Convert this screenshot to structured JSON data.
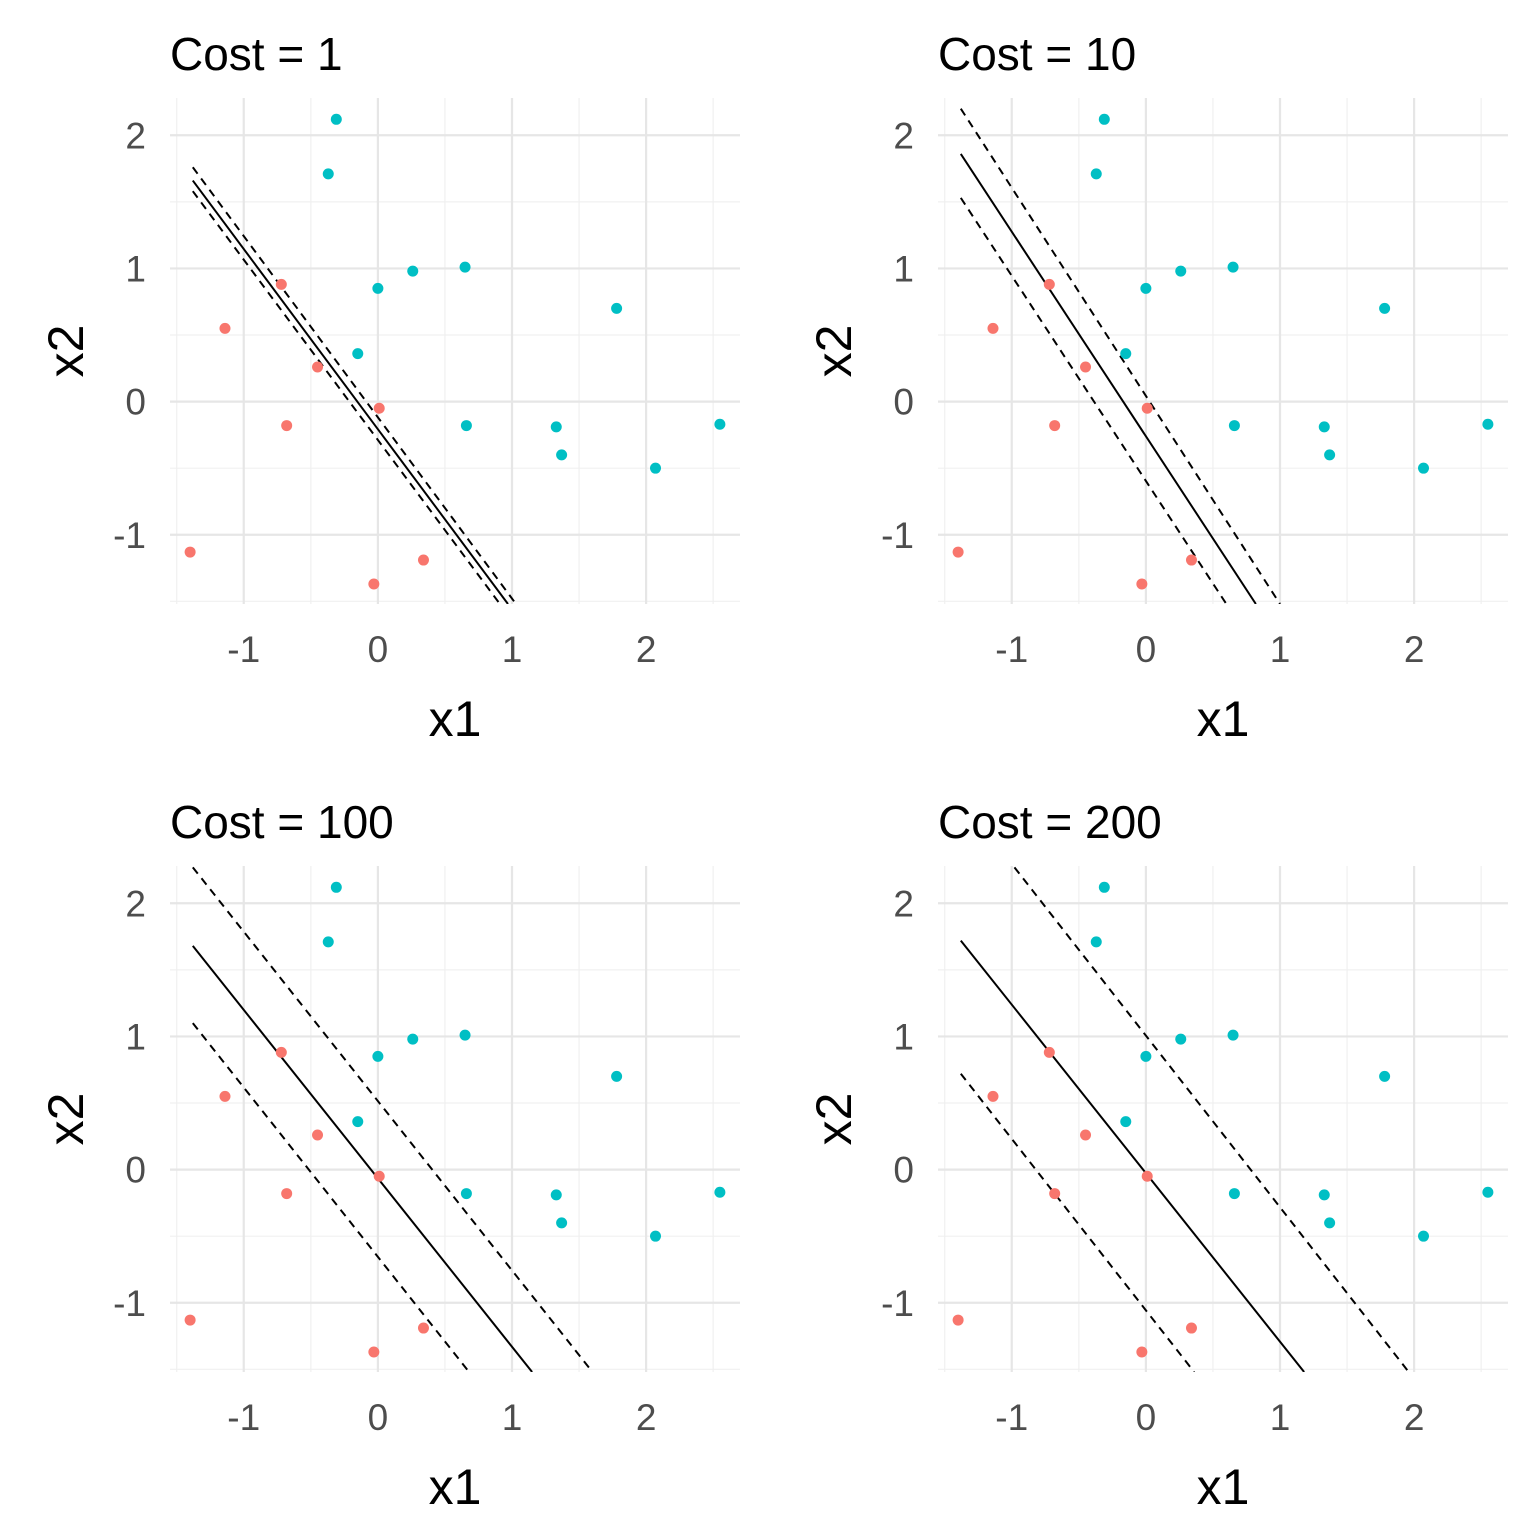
{
  "chart_data": [
    {
      "type": "scatter",
      "title": "Cost = 1",
      "xlabel": "x1",
      "ylabel": "x2",
      "xlim": [
        -1.55,
        2.7
      ],
      "ylim": [
        -1.52,
        2.28
      ],
      "xticks": [
        -1,
        0,
        1,
        2
      ],
      "yticks": [
        -1,
        0,
        1,
        2
      ],
      "grid": true,
      "series": [
        {
          "color": "#F8766D",
          "x": [
            -1.4,
            -1.14,
            -0.72,
            -0.68,
            -0.45,
            0.01,
            -0.03,
            0.34
          ],
          "y": [
            -1.13,
            0.55,
            0.88,
            -0.18,
            0.26,
            -0.05,
            -1.37,
            -1.19
          ]
        },
        {
          "color": "#00BFC4",
          "x": [
            -0.31,
            -0.37,
            0.0,
            0.26,
            0.65,
            -0.15,
            0.66,
            1.33,
            1.37,
            1.78,
            2.07,
            2.55
          ],
          "y": [
            2.12,
            1.71,
            0.85,
            0.98,
            1.01,
            0.36,
            -0.18,
            -0.19,
            -0.4,
            0.7,
            -0.5,
            -0.17
          ]
        }
      ],
      "boundary": {
        "x": [
          -1.38,
          0.97
        ],
        "y": [
          1.66,
          -1.52
        ]
      },
      "margins": [
        {
          "x": [
            -1.38,
            1.03
          ],
          "y": [
            1.76,
            -1.52
          ]
        },
        {
          "x": [
            -1.38,
            0.91
          ],
          "y": [
            1.58,
            -1.52
          ]
        }
      ]
    },
    {
      "type": "scatter",
      "title": "Cost = 10",
      "xlabel": "x1",
      "ylabel": "x2",
      "xlim": [
        -1.55,
        2.7
      ],
      "ylim": [
        -1.52,
        2.28
      ],
      "xticks": [
        -1,
        0,
        1,
        2
      ],
      "yticks": [
        -1,
        0,
        1,
        2
      ],
      "grid": true,
      "series": [
        {
          "color": "#F8766D",
          "x": [
            -1.4,
            -1.14,
            -0.72,
            -0.68,
            -0.45,
            0.01,
            -0.03,
            0.34
          ],
          "y": [
            -1.13,
            0.55,
            0.88,
            -0.18,
            0.26,
            -0.05,
            -1.37,
            -1.19
          ]
        },
        {
          "color": "#00BFC4",
          "x": [
            -0.31,
            -0.37,
            0.0,
            0.26,
            0.65,
            -0.15,
            0.66,
            1.33,
            1.37,
            1.78,
            2.07,
            2.55
          ],
          "y": [
            2.12,
            1.71,
            0.85,
            0.98,
            1.01,
            0.36,
            -0.18,
            -0.19,
            -0.4,
            0.7,
            -0.5,
            -0.17
          ]
        }
      ],
      "boundary": {
        "x": [
          -1.38,
          0.82
        ],
        "y": [
          1.86,
          -1.52
        ]
      },
      "margins": [
        {
          "x": [
            -1.38,
            1.0
          ],
          "y": [
            2.2,
            -1.52
          ]
        },
        {
          "x": [
            -1.38,
            0.6
          ],
          "y": [
            1.53,
            -1.52
          ]
        }
      ]
    },
    {
      "type": "scatter",
      "title": "Cost = 100",
      "xlabel": "x1",
      "ylabel": "x2",
      "xlim": [
        -1.55,
        2.7
      ],
      "ylim": [
        -1.52,
        2.28
      ],
      "xticks": [
        -1,
        0,
        1,
        2
      ],
      "yticks": [
        -1,
        0,
        1,
        2
      ],
      "grid": true,
      "series": [
        {
          "color": "#F8766D",
          "x": [
            -1.4,
            -1.14,
            -0.72,
            -0.68,
            -0.45,
            0.01,
            -0.03,
            0.34
          ],
          "y": [
            -1.13,
            0.55,
            0.88,
            -0.18,
            0.26,
            -0.05,
            -1.37,
            -1.19
          ]
        },
        {
          "color": "#00BFC4",
          "x": [
            -0.31,
            -0.37,
            0.0,
            0.26,
            0.65,
            -0.15,
            0.66,
            1.33,
            1.37,
            1.78,
            2.07,
            2.55
          ],
          "y": [
            2.12,
            1.71,
            0.85,
            0.98,
            1.01,
            0.36,
            -0.18,
            -0.19,
            -0.4,
            0.7,
            -0.5,
            -0.17
          ]
        }
      ],
      "boundary": {
        "x": [
          -1.38,
          1.15
        ],
        "y": [
          1.68,
          -1.52
        ]
      },
      "margins": [
        {
          "x": [
            -1.38,
            1.6
          ],
          "y": [
            2.27,
            -1.52
          ]
        },
        {
          "x": [
            -1.38,
            0.68
          ],
          "y": [
            1.1,
            -1.52
          ]
        }
      ]
    },
    {
      "type": "scatter",
      "title": "Cost = 200",
      "xlabel": "x1",
      "ylabel": "x2",
      "xlim": [
        -1.55,
        2.7
      ],
      "ylim": [
        -1.52,
        2.28
      ],
      "xticks": [
        -1,
        0,
        1,
        2
      ],
      "yticks": [
        -1,
        0,
        1,
        2
      ],
      "grid": true,
      "series": [
        {
          "color": "#F8766D",
          "x": [
            -1.4,
            -1.14,
            -0.72,
            -0.68,
            -0.45,
            0.01,
            -0.03,
            0.34
          ],
          "y": [
            -1.13,
            0.55,
            0.88,
            -0.18,
            0.26,
            -0.05,
            -1.37,
            -1.19
          ]
        },
        {
          "color": "#00BFC4",
          "x": [
            -0.31,
            -0.37,
            0.0,
            0.26,
            0.65,
            -0.15,
            0.66,
            1.33,
            1.37,
            1.78,
            2.07,
            2.55
          ],
          "y": [
            2.12,
            1.71,
            0.85,
            0.98,
            1.01,
            0.36,
            -0.18,
            -0.19,
            -0.4,
            0.7,
            -0.5,
            -0.17
          ]
        }
      ],
      "boundary": {
        "x": [
          -1.38,
          1.18
        ],
        "y": [
          1.72,
          -1.52
        ]
      },
      "margins": [
        {
          "x": [
            -0.98,
            1.96
          ],
          "y": [
            2.27,
            -1.52
          ]
        },
        {
          "x": [
            -1.38,
            0.36
          ],
          "y": [
            0.72,
            -1.52
          ]
        }
      ]
    }
  ]
}
